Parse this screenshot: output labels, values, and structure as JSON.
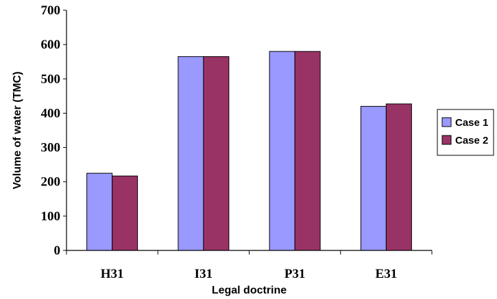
{
  "chart_data": {
    "type": "bar",
    "categories": [
      "H31",
      "I31",
      "P31",
      "E31"
    ],
    "series": [
      {
        "name": "Case 1",
        "values": [
          225,
          565,
          580,
          420
        ],
        "color": "#9999ff"
      },
      {
        "name": "Case 2",
        "values": [
          217,
          565,
          580,
          427
        ],
        "color": "#993366"
      }
    ],
    "xlabel": "Legal doctrine",
    "ylabel": "Volume of water (TMC)",
    "ylim": [
      0,
      700
    ],
    "yticks": [
      0,
      100,
      200,
      300,
      400,
      500,
      600,
      700
    ],
    "grid": false,
    "legend_position": "right"
  }
}
